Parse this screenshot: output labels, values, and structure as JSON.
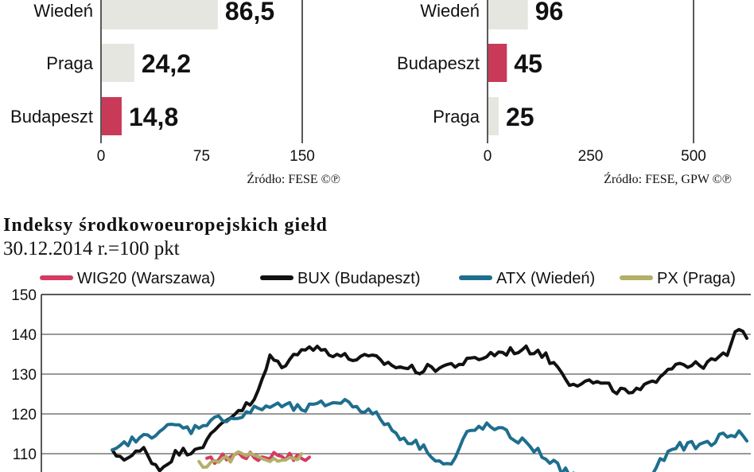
{
  "chart_data": [
    {
      "type": "bar",
      "orientation": "horizontal",
      "categories": [
        "Wiedeń",
        "Praga",
        "Budapeszt"
      ],
      "values": [
        86.5,
        24.2,
        14.8
      ],
      "value_labels": [
        "86,5",
        "24,2",
        "14,8"
      ],
      "colors": [
        "#e6e6e1",
        "#e6e6e1",
        "#c93a58"
      ],
      "xlim": [
        0,
        150
      ],
      "xticks": [
        "0",
        "75",
        "150"
      ],
      "source": "Źródło: FESE ©℗"
    },
    {
      "type": "bar",
      "orientation": "horizontal",
      "categories": [
        "Wiedeń",
        "Budapeszt",
        "Praga"
      ],
      "values": [
        96,
        45,
        25
      ],
      "value_labels": [
        "96",
        "45",
        "25"
      ],
      "colors": [
        "#e6e6e1",
        "#c93a58",
        "#e6e6e1"
      ],
      "xlim": [
        0,
        500
      ],
      "xticks": [
        "0",
        "250",
        "500"
      ],
      "source": "Źródło: FESE, GPW ©℗"
    },
    {
      "type": "line",
      "title": "Indeksy środkowoeuropejskich giełd",
      "subtitle": "30.12.2014 r.=100 pkt",
      "ylim": [
        100,
        150
      ],
      "yticks": [
        "110",
        "120",
        "130",
        "140",
        "150"
      ],
      "grid": true,
      "legend_position": "top",
      "x_steps": 180,
      "series": [
        {
          "name": "WIG20 (Warszawa)",
          "color": "#d63a62",
          "start": 42,
          "end": 68,
          "anchors": [
            [
              42,
              108
            ],
            [
              46,
              109
            ],
            [
              50,
              110
            ],
            [
              55,
              109
            ],
            [
              60,
              110
            ],
            [
              64,
              109
            ],
            [
              68,
              109
            ]
          ]
        },
        {
          "name": "BUX (Budapeszt)",
          "color": "#111111",
          "start": 18,
          "end": 179,
          "anchors": [
            [
              18,
              110
            ],
            [
              22,
              109
            ],
            [
              26,
              111
            ],
            [
              30,
              106
            ],
            [
              34,
              110
            ],
            [
              38,
              111
            ],
            [
              42,
              113
            ],
            [
              46,
              118
            ],
            [
              50,
              121
            ],
            [
              54,
              123
            ],
            [
              58,
              134
            ],
            [
              62,
              132
            ],
            [
              66,
              137
            ],
            [
              72,
              136
            ],
            [
              78,
              134
            ],
            [
              84,
              134
            ],
            [
              90,
              132
            ],
            [
              96,
              131
            ],
            [
              102,
              132
            ],
            [
              108,
              133
            ],
            [
              114,
              135
            ],
            [
              120,
              136
            ],
            [
              126,
              136
            ],
            [
              132,
              131
            ],
            [
              134,
              128
            ],
            [
              140,
              128
            ],
            [
              146,
              126
            ],
            [
              150,
              125
            ],
            [
              154,
              127
            ],
            [
              158,
              131
            ],
            [
              162,
              133
            ],
            [
              166,
              132
            ],
            [
              170,
              133
            ],
            [
              174,
              135
            ],
            [
              176,
              140
            ],
            [
              178,
              140.5
            ],
            [
              179,
              140
            ]
          ]
        },
        {
          "name": "ATX (Wiedeń)",
          "color": "#1e6e8e",
          "start": 18,
          "end": 179,
          "anchors": [
            [
              18,
              110
            ],
            [
              22,
              113
            ],
            [
              26,
              114
            ],
            [
              30,
              116
            ],
            [
              34,
              117
            ],
            [
              38,
              116
            ],
            [
              42,
              118
            ],
            [
              46,
              119
            ],
            [
              50,
              119
            ],
            [
              54,
              121
            ],
            [
              58,
              122
            ],
            [
              62,
              122
            ],
            [
              66,
              121
            ],
            [
              70,
              122
            ],
            [
              74,
              123
            ],
            [
              78,
              123
            ],
            [
              82,
              121
            ],
            [
              86,
              119
            ],
            [
              90,
              115
            ],
            [
              94,
              113
            ],
            [
              98,
              111
            ],
            [
              101,
              108
            ],
            [
              104,
              107
            ],
            [
              108,
              115
            ],
            [
              112,
              117
            ],
            [
              116,
              116
            ],
            [
              120,
              114
            ],
            [
              124,
              112
            ],
            [
              128,
              109
            ],
            [
              132,
              106
            ],
            [
              136,
              104
            ],
            [
              140,
              104
            ],
            [
              150,
              104
            ],
            [
              155,
              105
            ],
            [
              158,
              109
            ],
            [
              162,
              112
            ],
            [
              166,
              112
            ],
            [
              170,
              113
            ],
            [
              174,
              115
            ],
            [
              178,
              115
            ],
            [
              179,
              113
            ]
          ]
        },
        {
          "name": "PX (Praga)",
          "color": "#b3b068",
          "start": 40,
          "end": 66,
          "anchors": [
            [
              40,
              107
            ],
            [
              44,
              108
            ],
            [
              48,
              109
            ],
            [
              52,
              110
            ],
            [
              56,
              109
            ],
            [
              60,
              109
            ],
            [
              66,
              109
            ]
          ]
        }
      ]
    }
  ]
}
